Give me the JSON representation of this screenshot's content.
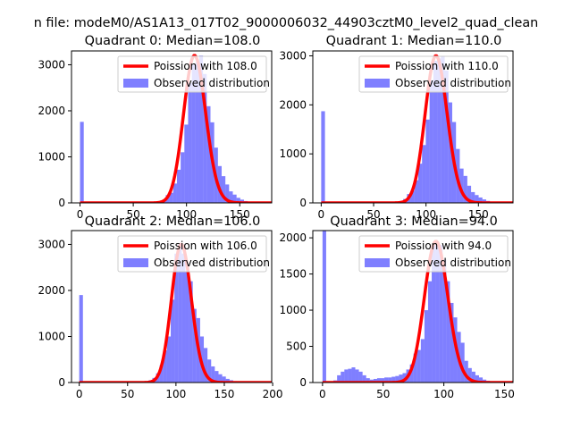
{
  "suptitle": "n file: modeM0/AS1A13_017T02_9000006032_44903cztM0_level2_quad_clean",
  "chart_data": [
    {
      "type": "bar",
      "title": "Quadrant 0: Median=108.0",
      "median": 108,
      "xlim": [
        -8,
        180
      ],
      "ylim": [
        0,
        3300
      ],
      "xticks": [
        0,
        50,
        100,
        150
      ],
      "yticks": [
        0,
        1000,
        2000,
        3000
      ],
      "bin_width": 3.5,
      "hist_color": "#0000ff",
      "fit_color": "#ff0000",
      "legend": {
        "fit_label": "Poission with 108.0",
        "hist_label": "Observed distribution",
        "loc": "upper right"
      },
      "histogram": {
        "bin_starts": [
          0,
          70,
          73.5,
          77,
          80.5,
          84,
          87.5,
          91,
          94.5,
          98,
          101.5,
          105,
          108.5,
          112,
          115.5,
          119,
          122.5,
          126,
          129.5,
          133,
          136.5,
          140,
          143.5,
          147,
          150.5,
          154,
          157.5,
          161,
          164.5,
          168
        ],
        "counts": [
          1760,
          20,
          30,
          60,
          170,
          220,
          420,
          720,
          1100,
          1700,
          2600,
          3000,
          3050,
          3200,
          2800,
          2100,
          1750,
          1200,
          800,
          580,
          400,
          250,
          180,
          110,
          70,
          40,
          25,
          15,
          10,
          5
        ]
      }
    },
    {
      "type": "bar",
      "title": "Quadrant 1: Median=110.0",
      "median": 110,
      "xlim": [
        -8,
        183
      ],
      "ylim": [
        0,
        3100
      ],
      "xticks": [
        0,
        50,
        100,
        150
      ],
      "yticks": [
        0,
        1000,
        2000,
        3000
      ],
      "bin_width": 3.6,
      "hist_color": "#0000ff",
      "fit_color": "#ff0000",
      "legend": {
        "fit_label": "Poission with 110.0",
        "hist_label": "Observed distribution",
        "loc": "upper right"
      },
      "histogram": {
        "bin_starts": [
          0,
          71,
          74.6,
          78.2,
          81.8,
          85.4,
          89,
          92.6,
          96.2,
          99.8,
          103.4,
          107,
          110.6,
          114.2,
          117.8,
          121.4,
          125,
          128.6,
          132.2,
          135.8,
          139.4,
          143,
          146.6,
          150.2,
          153.8,
          157.4,
          161,
          164.6,
          168.2
        ],
        "counts": [
          1870,
          20,
          40,
          80,
          180,
          250,
          460,
          800,
          1180,
          1700,
          2500,
          2900,
          2950,
          3000,
          2700,
          2050,
          1650,
          1100,
          700,
          550,
          350,
          220,
          160,
          110,
          70,
          40,
          25,
          15,
          8
        ]
      }
    },
    {
      "type": "bar",
      "title": "Quadrant 2: Median=106.0",
      "median": 106,
      "xlim": [
        -8,
        199
      ],
      "ylim": [
        0,
        3300
      ],
      "xticks": [
        0,
        50,
        100,
        150,
        200
      ],
      "yticks": [
        0,
        1000,
        2000,
        3000
      ],
      "bin_width": 3.8,
      "hist_color": "#0000ff",
      "fit_color": "#ff0000",
      "legend": {
        "fit_label": "Poission with 106.0",
        "hist_label": "Observed distribution",
        "loc": "upper right"
      },
      "histogram": {
        "bin_starts": [
          0,
          68,
          71.8,
          75.6,
          79.4,
          83.2,
          87,
          90.8,
          94.6,
          98.4,
          102.2,
          106,
          109.8,
          113.6,
          117.4,
          121.2,
          125,
          128.8,
          132.6,
          136.4,
          140.2,
          144,
          147.8,
          151.6,
          155.4,
          159.2,
          163,
          166.8
        ],
        "counts": [
          1900,
          20,
          50,
          100,
          200,
          380,
          700,
          1000,
          1800,
          2800,
          3000,
          2800,
          2400,
          2200,
          1600,
          1400,
          1000,
          750,
          500,
          350,
          250,
          180,
          130,
          80,
          50,
          30,
          20,
          10
        ]
      }
    },
    {
      "type": "bar",
      "title": "Quadrant 3: Median=94.0",
      "median": 94,
      "xlim": [
        -8,
        157
      ],
      "ylim": [
        0,
        2100
      ],
      "xticks": [
        0,
        50,
        100,
        150
      ],
      "yticks": [
        0,
        500,
        1000,
        1500,
        2000
      ],
      "bin_width": 3.0,
      "hist_color": "#0000ff",
      "fit_color": "#ff0000",
      "legend": {
        "fit_label": "Poission with 94.0",
        "hist_label": "Observed distribution",
        "loc": "upper right"
      },
      "histogram": {
        "bin_starts": [
          0,
          9,
          12,
          15,
          18,
          21,
          24,
          27,
          30,
          33,
          36,
          39,
          42,
          45,
          48,
          51,
          54,
          57,
          60,
          63,
          66,
          69,
          72,
          75,
          78,
          81,
          84,
          87,
          90,
          93,
          96,
          99,
          102,
          105,
          108,
          111,
          114,
          117,
          120,
          123,
          126,
          129,
          132,
          135,
          138
        ],
        "counts": [
          2100,
          30,
          100,
          150,
          180,
          190,
          210,
          180,
          150,
          100,
          60,
          40,
          50,
          60,
          60,
          70,
          70,
          80,
          90,
          110,
          130,
          180,
          250,
          400,
          450,
          600,
          1000,
          1400,
          1900,
          1950,
          1900,
          1700,
          1400,
          1100,
          900,
          700,
          550,
          300,
          200,
          150,
          100,
          70,
          40,
          25,
          10
        ]
      }
    }
  ]
}
